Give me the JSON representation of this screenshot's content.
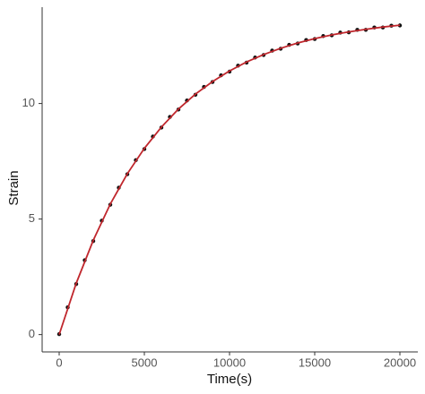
{
  "chart_data": {
    "type": "scatter",
    "xlabel": "Time(s)",
    "ylabel": "Strain",
    "xlim": [
      -1000,
      21000
    ],
    "xticks": [
      0,
      5000,
      10000,
      15000,
      20000
    ],
    "ylim": [
      -0.75,
      14.17
    ],
    "yticks": [
      0,
      5,
      10
    ],
    "series": [
      {
        "type": "scatter",
        "color": "#111111",
        "x": [
          0,
          500,
          1000,
          1500,
          2000,
          2500,
          3000,
          3500,
          4000,
          4500,
          5000,
          5500,
          6000,
          6500,
          7000,
          7500,
          8000,
          8500,
          9000,
          9500,
          10000,
          10500,
          11000,
          11500,
          12000,
          12500,
          13000,
          13500,
          14000,
          14500,
          15000,
          15500,
          16000,
          16500,
          17000,
          17500,
          18000,
          18500,
          19000,
          19500,
          20000
        ],
        "values": [
          0.02,
          1.18,
          2.19,
          3.22,
          4.05,
          4.93,
          5.62,
          6.36,
          6.94,
          7.55,
          8.03,
          8.57,
          8.96,
          9.42,
          9.74,
          10.13,
          10.38,
          10.72,
          10.93,
          11.22,
          11.38,
          11.64,
          11.77,
          11.99,
          12.1,
          12.29,
          12.37,
          12.54,
          12.6,
          12.75,
          12.79,
          12.92,
          12.95,
          13.07,
          13.08,
          13.19,
          13.19,
          13.29,
          13.29,
          13.37,
          13.38
        ]
      },
      {
        "type": "line",
        "color": "#c0272d",
        "x": [
          0,
          1000,
          2000,
          3000,
          4000,
          5000,
          6000,
          7000,
          8000,
          9000,
          10000,
          11000,
          12000,
          13000,
          14000,
          15000,
          16000,
          17000,
          18000,
          19000,
          20000
        ],
        "values": [
          0,
          2.22,
          4.08,
          5.65,
          6.96,
          8.06,
          8.98,
          9.76,
          10.41,
          10.95,
          11.41,
          11.8,
          12.12,
          12.39,
          12.62,
          12.81,
          12.97,
          13.1,
          13.21,
          13.31,
          13.39
        ]
      }
    ]
  }
}
